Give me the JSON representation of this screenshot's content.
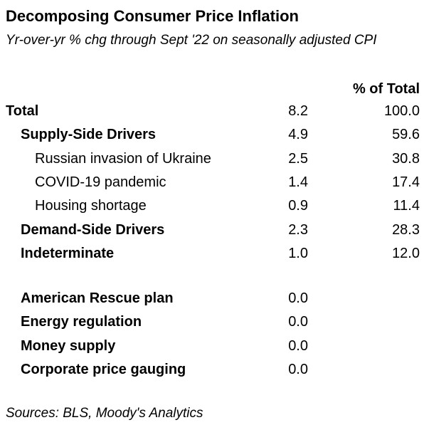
{
  "chart_data": {
    "type": "table",
    "title": "Decomposing Consumer Price Inflation",
    "subtitle": "Yr-over-yr % chg through Sept '22 on seasonally adjusted CPI",
    "columns": [
      "",
      "",
      "% of Total"
    ],
    "rows": [
      {
        "label": "Total",
        "value": "8.2",
        "pct": "100.0",
        "level": 0
      },
      {
        "label": "Supply-Side Drivers",
        "value": "4.9",
        "pct": "59.6",
        "level": 1
      },
      {
        "label": "Russian invasion of Ukraine",
        "value": "2.5",
        "pct": "30.8",
        "level": 2
      },
      {
        "label": "COVID-19 pandemic",
        "value": "1.4",
        "pct": "17.4",
        "level": 2
      },
      {
        "label": "Housing shortage",
        "value": "0.9",
        "pct": "11.4",
        "level": 2
      },
      {
        "label": "Demand-Side Drivers",
        "value": "2.3",
        "pct": "28.3",
        "level": 1
      },
      {
        "label": "Indeterminate",
        "value": "1.0",
        "pct": "12.0",
        "level": 1
      }
    ],
    "other_rows": [
      {
        "label": "American Rescue plan",
        "value": "0.0",
        "level": 1
      },
      {
        "label": "Energy regulation",
        "value": "0.0",
        "level": 1
      },
      {
        "label": "Money supply",
        "value": "0.0",
        "level": 1
      },
      {
        "label": "Corporate price gauging",
        "value": "0.0",
        "level": 1
      }
    ],
    "source": "Sources: BLS, Moody's Analytics"
  }
}
